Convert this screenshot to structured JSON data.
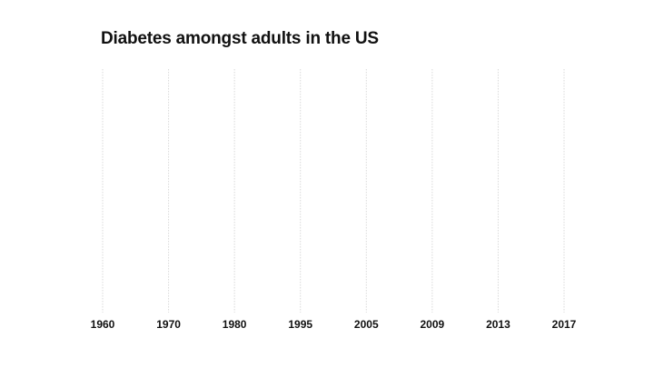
{
  "chart_data": {
    "type": "line",
    "title": "Diabetes amongst adults in the US",
    "xlabel": "",
    "ylabel": "",
    "categories": [
      "1960",
      "1970",
      "1980",
      "1995",
      "2005",
      "2009",
      "2013",
      "2017"
    ],
    "series": [],
    "grid": true,
    "legend": "none",
    "colors": {
      "gridline": "#d9d9d9",
      "text": "#111111",
      "background": "#ffffff"
    }
  }
}
